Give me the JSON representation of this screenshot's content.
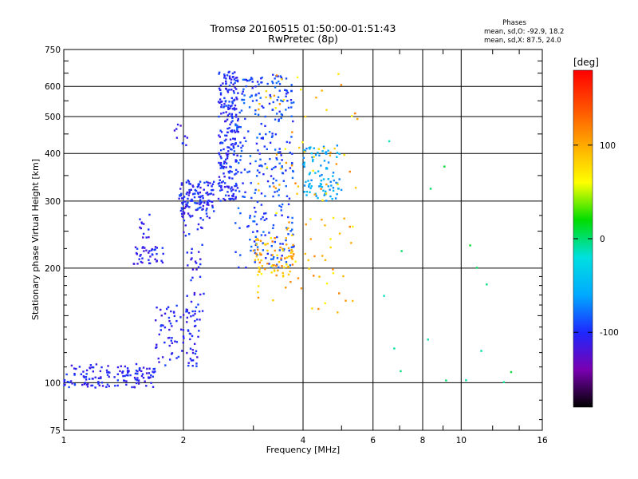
{
  "chart_data": {
    "type": "scatter",
    "title": "Tromsø 20160515 01:50:00-01:51:43",
    "subtitle": "RwPretec (8p)",
    "xlabel": "Frequency [MHz]",
    "ylabel": "Stationary phase Virtual Height [km]",
    "x_scale": "log",
    "y_scale": "log",
    "xlim": [
      1,
      16
    ],
    "ylim": [
      75,
      750
    ],
    "x_ticks": [
      "1",
      "2",
      "4",
      "6",
      "8",
      "10",
      "16"
    ],
    "x_tick_values": [
      1,
      2,
      4,
      6,
      8,
      10,
      16
    ],
    "y_ticks": [
      "75",
      "100",
      "200",
      "300",
      "400",
      "500",
      "600",
      "750"
    ],
    "y_tick_values": [
      75,
      100,
      200,
      300,
      400,
      500,
      600,
      750
    ],
    "grid": true,
    "phase_info": {
      "heading": "Phases",
      "line1": "mean, sd,O: -92.9, 18.2",
      "line2": "mean, sd,X:  87.5, 24.0"
    },
    "colorbar": {
      "label": "[deg]",
      "range": [
        -180,
        180
      ],
      "ticks": [
        "100",
        "0",
        "-100"
      ],
      "tick_values": [
        100,
        0,
        -100
      ],
      "colors": [
        "#000000",
        "#7a00b0",
        "#1e28ff",
        "#00aaff",
        "#00e0e0",
        "#00dd00",
        "#ffff00",
        "#ffaa00",
        "#ff5000",
        "#ff0000"
      ]
    },
    "point_color": "#1428e6",
    "clusters": [
      {
        "name": "low-trace",
        "x": [
          1.0,
          1.7
        ],
        "y": [
          97,
          112
        ],
        "n": 140,
        "phase": -105
      },
      {
        "name": "low-rise",
        "x": [
          1.7,
          2.2
        ],
        "y": [
          110,
          160
        ],
        "n": 90,
        "phase": -105
      },
      {
        "name": "blob-215",
        "x": [
          1.5,
          1.8
        ],
        "y": [
          205,
          230
        ],
        "n": 40,
        "phase": -105
      },
      {
        "name": "trace-250",
        "x": [
          1.55,
          1.65
        ],
        "y": [
          230,
          290
        ],
        "n": 12,
        "phase": -110
      },
      {
        "name": "f-285",
        "x": [
          1.95,
          2.4
        ],
        "y": [
          270,
          340
        ],
        "n": 110,
        "phase": -100
      },
      {
        "name": "trace-450",
        "x": [
          1.9,
          2.05
        ],
        "y": [
          420,
          500
        ],
        "n": 10,
        "phase": -110
      },
      {
        "name": "vert-2.1",
        "x": [
          2.0,
          2.25
        ],
        "y": [
          150,
          330
        ],
        "n": 60,
        "phase": -105
      },
      {
        "name": "f2-column",
        "x": [
          2.45,
          2.75
        ],
        "y": [
          300,
          660
        ],
        "n": 240,
        "phase": -100
      },
      {
        "name": "f2-spread",
        "x": [
          2.7,
          3.8
        ],
        "y": [
          200,
          650
        ],
        "n": 300,
        "phase": -90
      },
      {
        "name": "mid-4.5",
        "x": [
          4.0,
          5.0
        ],
        "y": [
          300,
          420
        ],
        "n": 90,
        "phase": -60
      },
      {
        "name": "yellow-220",
        "x": [
          3.0,
          3.8
        ],
        "y": [
          190,
          240
        ],
        "n": 70,
        "phase": 95
      },
      {
        "name": "yellow-cloud",
        "x": [
          3.0,
          5.5
        ],
        "y": [
          150,
          650
        ],
        "n": 110,
        "phase": 90
      },
      {
        "name": "sparse",
        "x": [
          6.0,
          14.0
        ],
        "y": [
          85,
          450
        ],
        "n": 16,
        "phase": 0
      }
    ]
  }
}
